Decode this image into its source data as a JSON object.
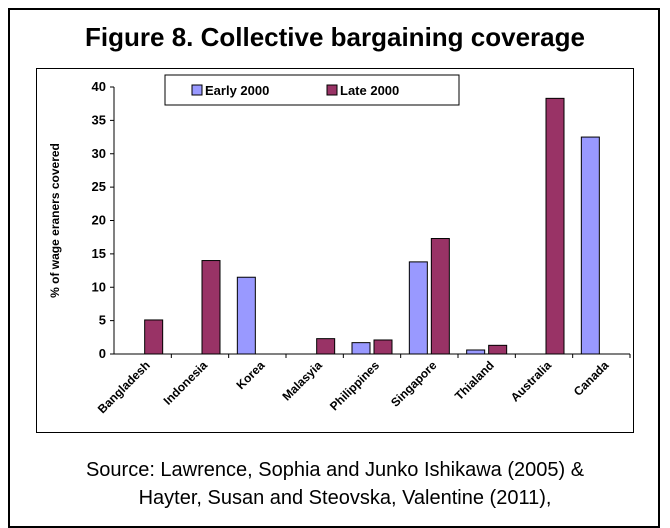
{
  "chart_data": {
    "type": "bar",
    "title": "Figure 8.  Collective bargaining  coverage",
    "xlabel": "",
    "ylabel": "% of wage eraners covered",
    "categories": [
      "Bangladesh",
      "Indonesia",
      "Korea",
      "Malasyia",
      "Philippines",
      "Singapore",
      "Thialand",
      "Australia",
      "Canada"
    ],
    "series": [
      {
        "name": "Early 2000",
        "color": "#9999ff",
        "values": [
          null,
          null,
          11.5,
          null,
          1.7,
          13.8,
          0.6,
          null,
          32.5
        ]
      },
      {
        "name": "Late 2000",
        "color": "#993366",
        "values": [
          5.1,
          14.0,
          null,
          2.3,
          2.1,
          17.3,
          1.3,
          38.3,
          null
        ]
      }
    ],
    "ylim": [
      0,
      40
    ],
    "yticks": [
      0,
      5,
      10,
      15,
      20,
      25,
      30,
      35,
      40
    ],
    "grid": false,
    "legend_position": "top"
  },
  "source": {
    "line1": "Source: Lawrence, Sophia and Junko Ishikawa (2005) &",
    "line2": "Hayter, Susan and Steovska, Valentine (2011),"
  }
}
